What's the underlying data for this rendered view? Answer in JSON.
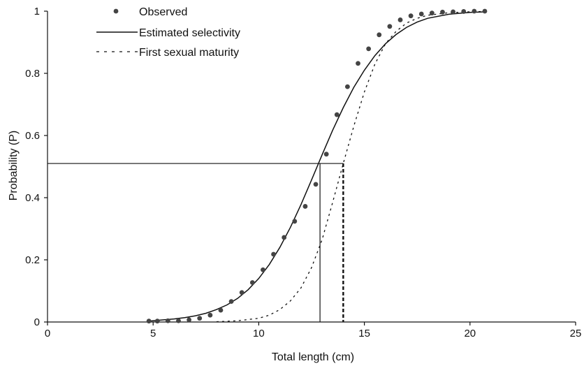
{
  "chart_data": {
    "type": "scatter",
    "title": "",
    "xlabel": "Total length (cm)",
    "ylabel": "Probability (P)",
    "xlim": [
      0,
      25
    ],
    "ylim": [
      0,
      1
    ],
    "xticks": [
      0,
      5,
      10,
      15,
      20,
      25
    ],
    "yticks": [
      0,
      0.2,
      0.4,
      0.6,
      0.8,
      1
    ],
    "ytick_labels": [
      "0",
      "0.2",
      "0.4",
      "0.6",
      "0.8",
      "1"
    ],
    "grid": false,
    "legend_position": "top-left",
    "series": [
      {
        "name": "Observed",
        "style": "points",
        "color": "#444444",
        "x": [
          4.8,
          5.2,
          5.7,
          6.2,
          6.7,
          7.2,
          7.7,
          8.2,
          8.7,
          9.2,
          9.7,
          10.2,
          10.7,
          11.2,
          11.7,
          12.2,
          12.7,
          13.2,
          13.7,
          14.2,
          14.7,
          15.2,
          15.7,
          16.2,
          16.7,
          17.2,
          17.7,
          18.2,
          18.7,
          19.2,
          19.7,
          20.2,
          20.7
        ],
        "y": [
          0.003,
          0.003,
          0.004,
          0.004,
          0.007,
          0.012,
          0.022,
          0.038,
          0.066,
          0.095,
          0.127,
          0.168,
          0.218,
          0.272,
          0.324,
          0.372,
          0.443,
          0.54,
          0.667,
          0.757,
          0.832,
          0.879,
          0.924,
          0.951,
          0.972,
          0.985,
          0.991,
          0.994,
          0.997,
          0.998,
          0.999,
          1.0,
          1.0
        ]
      },
      {
        "name": "Estimated selectivity",
        "style": "solid",
        "color": "#111111",
        "x": [
          4.8,
          5.5,
          6.0,
          6.5,
          7.0,
          7.5,
          8.0,
          8.5,
          9.0,
          9.5,
          10.0,
          10.5,
          11.0,
          11.5,
          12.0,
          12.5,
          13.0,
          13.5,
          14.0,
          14.5,
          15.0,
          15.5,
          16.0,
          16.5,
          17.0,
          17.5,
          18.0,
          19.0,
          20.0,
          20.8
        ],
        "y": [
          0.003,
          0.007,
          0.01,
          0.014,
          0.02,
          0.028,
          0.04,
          0.055,
          0.076,
          0.104,
          0.14,
          0.185,
          0.24,
          0.305,
          0.378,
          0.457,
          0.538,
          0.617,
          0.69,
          0.755,
          0.81,
          0.857,
          0.895,
          0.925,
          0.948,
          0.965,
          0.977,
          0.99,
          0.996,
          0.998
        ]
      },
      {
        "name": "First sexual maturity",
        "style": "dashed",
        "color": "#111111",
        "x": [
          8.0,
          9.0,
          10.0,
          10.5,
          11.0,
          11.5,
          12.0,
          12.5,
          13.0,
          13.5,
          14.0,
          14.5,
          15.0,
          15.5,
          16.0,
          16.5,
          17.0,
          17.5,
          18.0,
          19.0,
          20.0,
          20.8
        ],
        "y": [
          0.001,
          0.004,
          0.012,
          0.022,
          0.04,
          0.068,
          0.11,
          0.175,
          0.265,
          0.385,
          0.51,
          0.63,
          0.74,
          0.83,
          0.895,
          0.935,
          0.962,
          0.977,
          0.987,
          0.995,
          0.998,
          0.999
        ]
      }
    ],
    "reference_lines": [
      {
        "style": "solid",
        "p": 0.51,
        "length_at_p": 12.9
      },
      {
        "style": "dashed",
        "p": 0.51,
        "length_at_p": 14.0
      }
    ]
  }
}
